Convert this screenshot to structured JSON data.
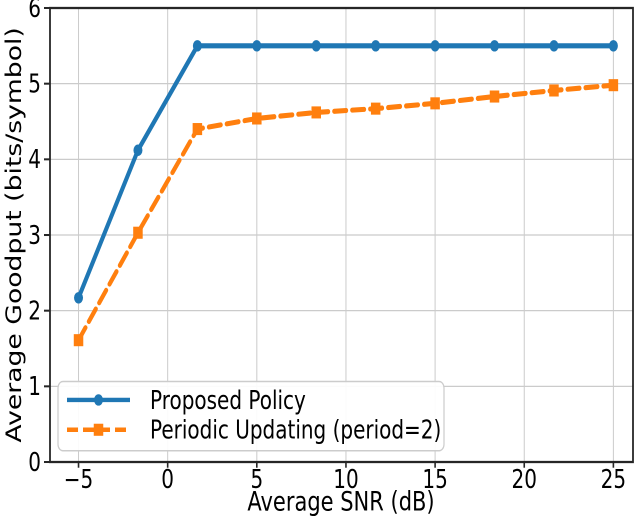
{
  "chart_data": {
    "type": "line",
    "title": "",
    "xlabel": "Average SNR (dB)",
    "ylabel": "Average Goodput (bits/symbol)",
    "xlim": [
      -6.6,
      26.1
    ],
    "ylim": [
      0,
      6
    ],
    "xticks": [
      -5,
      0,
      5,
      10,
      15,
      20,
      25
    ],
    "yticks": [
      0,
      1,
      2,
      3,
      4,
      5,
      6
    ],
    "grid": true,
    "legend_position": "lower-left",
    "x": [
      -5,
      -1.667,
      1.667,
      5,
      8.333,
      11.667,
      15,
      18.333,
      21.667,
      25
    ],
    "series": [
      {
        "name": "Proposed Policy",
        "color": "#1f77b4",
        "linestyle": "solid",
        "marker": "circle",
        "values": [
          2.17,
          4.12,
          5.5,
          5.5,
          5.5,
          5.5,
          5.5,
          5.5,
          5.5,
          5.5
        ]
      },
      {
        "name": "Periodic Updating (period=2)",
        "color": "#ff7f0e",
        "linestyle": "dashed",
        "marker": "square",
        "values": [
          1.61,
          3.03,
          4.4,
          4.54,
          4.62,
          4.67,
          4.74,
          4.83,
          4.91,
          4.98
        ]
      }
    ]
  }
}
